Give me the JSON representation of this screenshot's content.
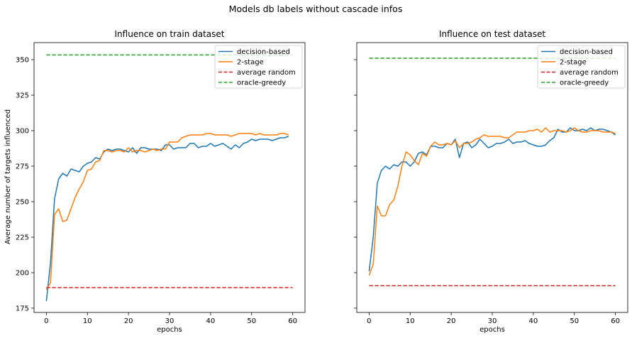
{
  "figure": {
    "suptitle": "Models db labels without cascade infos",
    "shared_ylabel": "Average number of targets influenced"
  },
  "colors": {
    "decision": "#1f77b4",
    "two_stage": "#ff7f0e",
    "random": "#d62728",
    "oracle": "#2ca02c"
  },
  "chart_data": [
    {
      "type": "line",
      "title": "Influence on train dataset",
      "xlabel": "epochs",
      "ylabel": "Average number of targets influenced",
      "xlim": [
        -3,
        63
      ],
      "ylim": [
        172,
        362
      ],
      "xticks": [
        0,
        10,
        20,
        30,
        40,
        50,
        60
      ],
      "xtick_labels": [
        "0",
        "10",
        "20",
        "30",
        "40",
        "50",
        "60"
      ],
      "yticks": [
        175,
        200,
        225,
        250,
        275,
        300,
        325,
        350
      ],
      "ytick_labels": [
        "175",
        "200",
        "225",
        "250",
        "275",
        "300",
        "325",
        "350"
      ],
      "legend_position": "upper right",
      "series": [
        {
          "name": "decision-based",
          "color_key": "decision",
          "dash": "solid",
          "x": [
            0,
            1,
            2,
            3,
            4,
            5,
            6,
            7,
            8,
            9,
            10,
            11,
            12,
            13,
            14,
            15,
            16,
            17,
            18,
            19,
            20,
            21,
            22,
            23,
            24,
            25,
            26,
            27,
            28,
            29,
            30,
            31,
            32,
            33,
            34,
            35,
            36,
            37,
            38,
            39,
            40,
            41,
            42,
            43,
            44,
            45,
            46,
            47,
            48,
            49,
            50,
            51,
            52,
            53,
            54,
            55,
            56,
            57,
            58,
            59
          ],
          "y": [
            180,
            207,
            252,
            266,
            270,
            268,
            273,
            272,
            271,
            275,
            277,
            278,
            281,
            280,
            285,
            287,
            286,
            287,
            287,
            286,
            285,
            288,
            284,
            288,
            288,
            287,
            287,
            287,
            286,
            290,
            290,
            287,
            288,
            288,
            288,
            291,
            291,
            288,
            289,
            289,
            291,
            289,
            290,
            291,
            289,
            287,
            290,
            288,
            291,
            292,
            294,
            293,
            294,
            294,
            294,
            293,
            294,
            295,
            295,
            296
          ]
        },
        {
          "name": "2-stage",
          "color_key": "two_stage",
          "dash": "solid",
          "x": [
            0,
            1,
            2,
            3,
            4,
            5,
            6,
            7,
            8,
            9,
            10,
            11,
            12,
            13,
            14,
            15,
            16,
            17,
            18,
            19,
            20,
            21,
            22,
            23,
            24,
            25,
            26,
            27,
            28,
            29,
            30,
            31,
            32,
            33,
            34,
            35,
            36,
            37,
            38,
            39,
            40,
            41,
            42,
            43,
            44,
            45,
            46,
            47,
            48,
            49,
            50,
            51,
            52,
            53,
            54,
            55,
            56,
            57,
            58,
            59
          ],
          "y": [
            188,
            193,
            241,
            245,
            236,
            237,
            245,
            253,
            259,
            264,
            272,
            273,
            278,
            279,
            286,
            286,
            285,
            286,
            286,
            285,
            288,
            285,
            286,
            286,
            285,
            286,
            287,
            286,
            287,
            287,
            292,
            292,
            292,
            295,
            296,
            297,
            297,
            297,
            297,
            298,
            298,
            297,
            297,
            297,
            297,
            296,
            297,
            298,
            298,
            298,
            298,
            297,
            298,
            297,
            297,
            297,
            297,
            298,
            298,
            297
          ]
        },
        {
          "name": "average random",
          "color_key": "random",
          "dash": "dashed",
          "x": [
            0,
            60
          ],
          "y": [
            189.5,
            189.5
          ]
        },
        {
          "name": "oracle-greedy",
          "color_key": "oracle",
          "dash": "dashed",
          "x": [
            0,
            60
          ],
          "y": [
            353.3,
            353.3
          ]
        }
      ]
    },
    {
      "type": "line",
      "title": "Influence on test dataset",
      "xlabel": "epochs",
      "ylabel": "",
      "xlim": [
        -3,
        63
      ],
      "ylim": [
        172,
        362
      ],
      "xticks": [
        0,
        10,
        20,
        30,
        40,
        50,
        60
      ],
      "xtick_labels": [
        "0",
        "10",
        "20",
        "30",
        "40",
        "50",
        "60"
      ],
      "yticks": [
        175,
        200,
        225,
        250,
        275,
        300,
        325,
        350
      ],
      "ytick_labels": [],
      "legend_position": "upper right",
      "series": [
        {
          "name": "decision-based",
          "color_key": "decision",
          "dash": "solid",
          "x": [
            0,
            1,
            2,
            3,
            4,
            5,
            6,
            7,
            8,
            9,
            10,
            11,
            12,
            13,
            14,
            15,
            16,
            17,
            18,
            19,
            20,
            21,
            22,
            23,
            24,
            25,
            26,
            27,
            28,
            29,
            30,
            31,
            32,
            33,
            34,
            35,
            36,
            37,
            38,
            39,
            40,
            41,
            42,
            43,
            44,
            45,
            46,
            47,
            48,
            49,
            50,
            51,
            52,
            53,
            54,
            55,
            56,
            57,
            58,
            59,
            60
          ],
          "y": [
            201,
            225,
            263,
            272,
            275,
            273,
            276,
            275,
            278,
            278,
            275,
            278,
            284,
            285,
            283,
            289,
            289,
            288,
            288,
            291,
            290,
            294,
            281,
            291,
            292,
            288,
            290,
            294,
            291,
            288,
            289,
            291,
            291,
            292,
            294,
            291,
            292,
            292,
            293,
            291,
            290,
            289,
            289,
            290,
            293,
            295,
            301,
            299,
            299,
            302,
            300,
            300,
            301,
            300,
            302,
            300,
            301,
            301,
            300,
            299,
            297
          ]
        },
        {
          "name": "2-stage",
          "color_key": "two_stage",
          "dash": "solid",
          "x": [
            0,
            1,
            2,
            3,
            4,
            5,
            6,
            7,
            8,
            9,
            10,
            11,
            12,
            13,
            14,
            15,
            16,
            17,
            18,
            19,
            20,
            21,
            22,
            23,
            24,
            25,
            26,
            27,
            28,
            29,
            30,
            31,
            32,
            33,
            34,
            35,
            36,
            37,
            38,
            39,
            40,
            41,
            42,
            43,
            44,
            45,
            46,
            47,
            48,
            49,
            50,
            51,
            52,
            53,
            54,
            55,
            56,
            57,
            58,
            59,
            60
          ],
          "y": [
            198,
            206,
            247,
            240,
            240,
            248,
            251,
            261,
            275,
            285,
            283,
            279,
            276,
            284,
            282,
            289,
            292,
            290,
            290,
            291,
            290,
            293,
            288,
            291,
            291,
            292,
            294,
            295,
            297,
            296,
            296,
            296,
            296,
            295,
            295,
            297,
            299,
            299,
            299,
            300,
            300,
            301,
            299,
            302,
            299,
            300,
            300,
            300,
            299,
            300,
            302,
            300,
            299,
            299,
            300,
            300,
            300,
            299,
            299,
            299,
            298
          ]
        },
        {
          "name": "average random",
          "color_key": "random",
          "dash": "dashed",
          "x": [
            0,
            60
          ],
          "y": [
            190.8,
            190.8
          ]
        },
        {
          "name": "oracle-greedy",
          "color_key": "oracle",
          "dash": "dashed",
          "x": [
            0,
            60
          ],
          "y": [
            351.0,
            351.0
          ]
        }
      ]
    }
  ]
}
